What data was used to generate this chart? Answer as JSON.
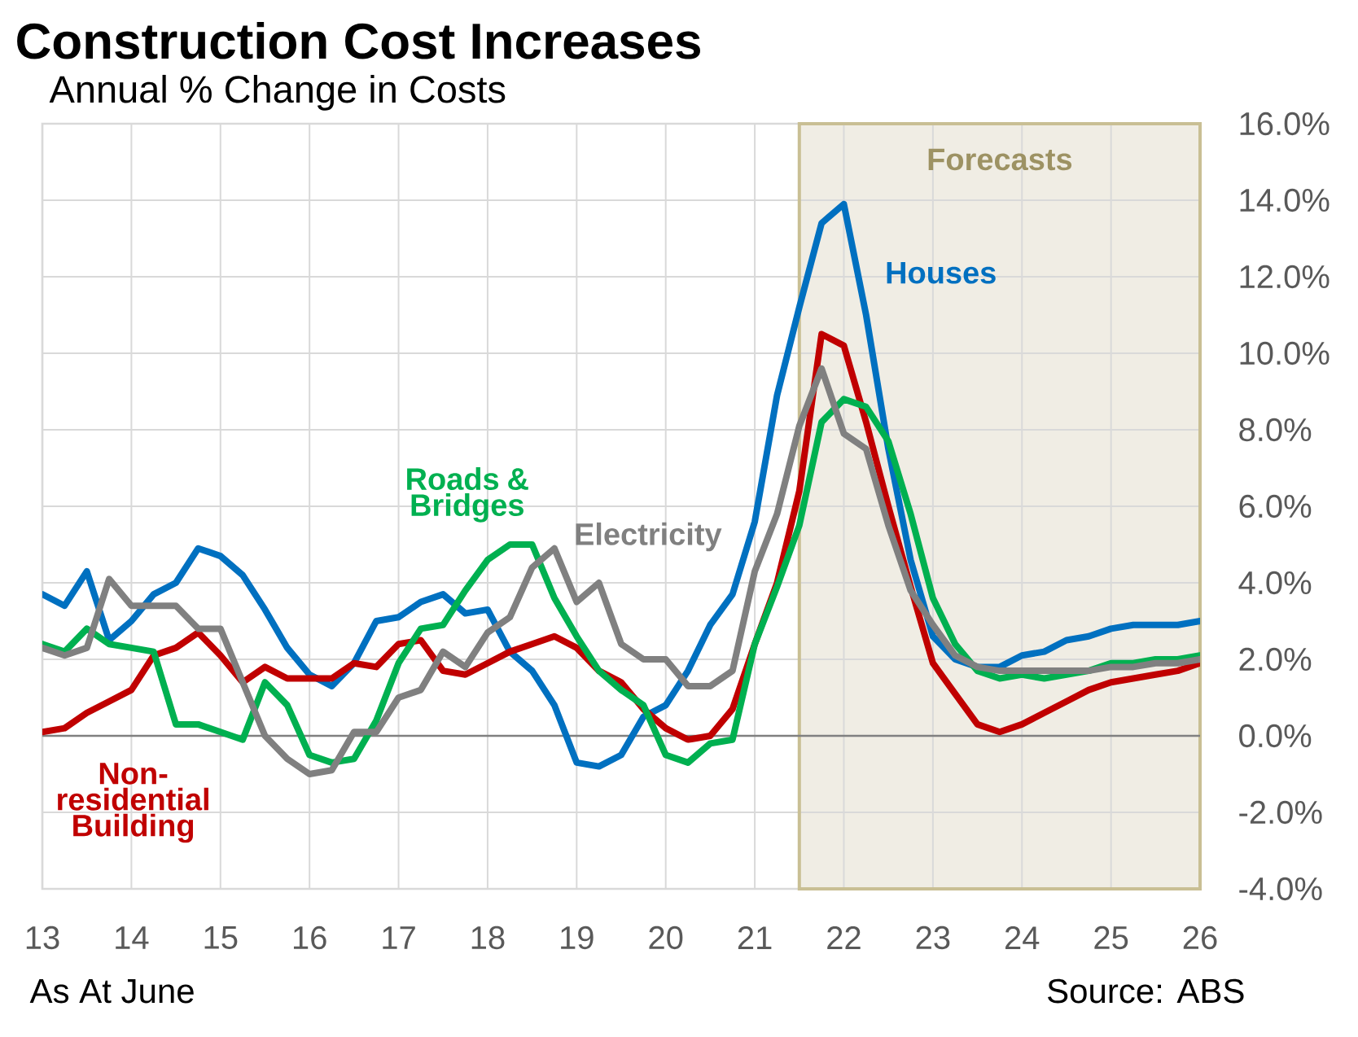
{
  "chart_data": {
    "type": "line",
    "title": "Construction Cost Increases",
    "subtitle": "Annual % Change in Costs",
    "annotations": [
      "As At June",
      "Source: ABS"
    ],
    "x": [
      13,
      13.25,
      13.5,
      13.75,
      14,
      14.25,
      14.5,
      14.75,
      15,
      15.25,
      15.5,
      15.75,
      16,
      16.25,
      16.5,
      16.75,
      17,
      17.25,
      17.5,
      17.75,
      18,
      18.25,
      18.5,
      18.75,
      19,
      19.25,
      19.5,
      19.75,
      20,
      20.25,
      20.5,
      20.75,
      21,
      21.25,
      21.5,
      21.75,
      22,
      22.25,
      22.5,
      22.75,
      23,
      23.25,
      23.5,
      23.75,
      24,
      24.25,
      24.5,
      24.75,
      25,
      25.25,
      25.5,
      25.75,
      26
    ],
    "series": [
      {
        "name": "Houses",
        "color": "#0070c0",
        "values": [
          3.7,
          3.4,
          4.3,
          2.5,
          3.0,
          3.7,
          4.0,
          4.9,
          4.7,
          4.2,
          3.3,
          2.3,
          1.6,
          1.3,
          1.9,
          3.0,
          3.1,
          3.5,
          3.7,
          3.2,
          3.3,
          2.2,
          1.7,
          0.8,
          -0.7,
          -0.8,
          -0.5,
          0.5,
          0.8,
          1.7,
          2.9,
          3.7,
          5.6,
          8.9,
          11.2,
          13.4,
          13.9,
          11.0,
          7.5,
          4.6,
          2.6,
          2.0,
          1.8,
          1.8,
          2.1,
          2.2,
          2.5,
          2.6,
          2.8,
          2.9,
          2.9,
          2.9,
          3.0
        ]
      },
      {
        "name": "Non-residential Building",
        "color": "#c00000",
        "values": [
          0.1,
          0.2,
          0.6,
          0.9,
          1.2,
          2.1,
          2.3,
          2.7,
          2.1,
          1.4,
          1.8,
          1.5,
          1.5,
          1.5,
          1.9,
          1.8,
          2.4,
          2.5,
          1.7,
          1.6,
          1.9,
          2.2,
          2.4,
          2.6,
          2.3,
          1.7,
          1.4,
          0.7,
          0.2,
          -0.1,
          0.0,
          0.7,
          2.4,
          4.0,
          6.4,
          10.5,
          10.2,
          8.2,
          6.0,
          3.9,
          1.9,
          1.1,
          0.3,
          0.1,
          0.3,
          0.6,
          0.9,
          1.2,
          1.4,
          1.5,
          1.6,
          1.7,
          1.9
        ]
      },
      {
        "name": "Roads & Bridges",
        "color": "#00b050",
        "values": [
          2.4,
          2.2,
          2.8,
          2.4,
          2.3,
          2.2,
          0.3,
          0.3,
          0.1,
          -0.1,
          1.4,
          0.8,
          -0.5,
          -0.7,
          -0.6,
          0.4,
          1.9,
          2.8,
          2.9,
          3.8,
          4.6,
          5.0,
          5.0,
          3.6,
          2.6,
          1.7,
          1.2,
          0.8,
          -0.5,
          -0.7,
          -0.2,
          -0.1,
          2.4,
          3.9,
          5.5,
          8.2,
          8.8,
          8.6,
          7.7,
          5.8,
          3.6,
          2.4,
          1.7,
          1.5,
          1.6,
          1.5,
          1.6,
          1.7,
          1.9,
          1.9,
          2.0,
          2.0,
          2.1
        ]
      },
      {
        "name": "Electricity",
        "color": "#808080",
        "values": [
          2.3,
          2.1,
          2.3,
          4.1,
          3.4,
          3.4,
          3.4,
          2.8,
          2.8,
          1.4,
          0.0,
          -0.6,
          -1.0,
          -0.9,
          0.1,
          0.1,
          1.0,
          1.2,
          2.2,
          1.8,
          2.7,
          3.1,
          4.4,
          4.9,
          3.5,
          4.0,
          2.4,
          2.0,
          2.0,
          1.3,
          1.3,
          1.7,
          4.3,
          5.8,
          8.1,
          9.6,
          7.9,
          7.5,
          5.5,
          3.8,
          2.9,
          2.1,
          1.8,
          1.7,
          1.7,
          1.7,
          1.7,
          1.7,
          1.8,
          1.8,
          1.9,
          1.9,
          2.0
        ]
      }
    ],
    "xlim": [
      13,
      26
    ],
    "ylim": [
      -4,
      16
    ],
    "xticks": [
      13,
      14,
      15,
      16,
      17,
      18,
      19,
      20,
      21,
      22,
      23,
      24,
      25,
      26
    ],
    "yticks": [
      {
        "value": -4,
        "label": "-4.0%"
      },
      {
        "value": -2,
        "label": "-2.0%"
      },
      {
        "value": 0,
        "label": "0.0%"
      },
      {
        "value": 2,
        "label": "2.0%"
      },
      {
        "value": 4,
        "label": "4.0%"
      },
      {
        "value": 6,
        "label": "6.0%"
      },
      {
        "value": 8,
        "label": "8.0%"
      },
      {
        "value": 10,
        "label": "10.0%"
      },
      {
        "value": 12,
        "label": "12.0%"
      },
      {
        "value": 14,
        "label": "14.0%"
      },
      {
        "value": 16,
        "label": "16.0%"
      }
    ],
    "grid": true,
    "bands": [
      {
        "axis": "x",
        "from": 21.5,
        "to": 26,
        "label": "Forecasts",
        "color": "#f0ede4"
      }
    ],
    "ref_lines": [
      {
        "axis": "y",
        "value": 0,
        "color": "#808080"
      }
    ]
  }
}
